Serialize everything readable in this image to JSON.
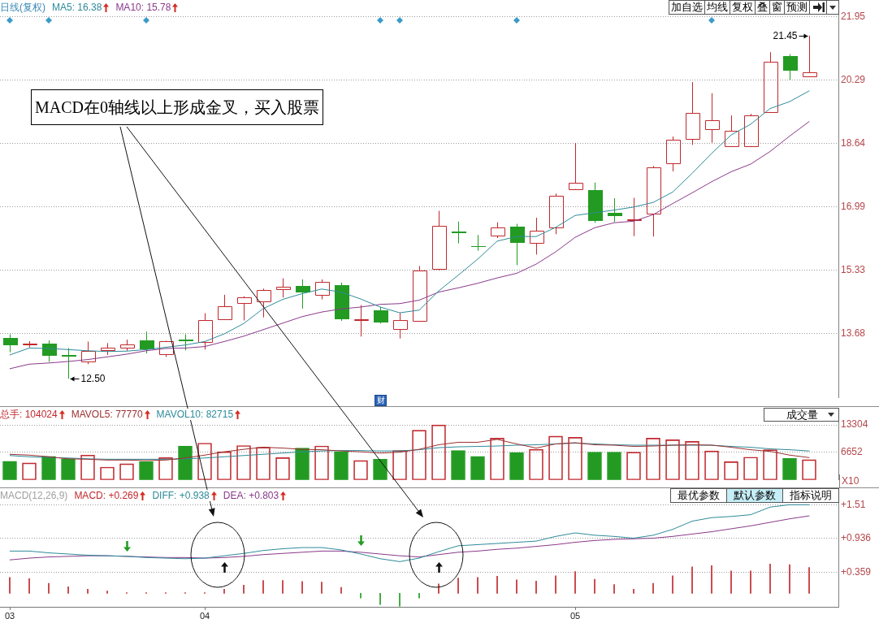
{
  "chart_data": [
    {
      "type": "candlestick",
      "title": "日线(复权)",
      "categories": [
        "03",
        null,
        null,
        null,
        null,
        null,
        null,
        null,
        null,
        null,
        "04",
        null,
        null,
        null,
        null,
        null,
        null,
        null,
        null,
        null,
        null,
        null,
        null,
        null,
        null,
        null,
        null,
        null,
        null,
        "05",
        null,
        null,
        null,
        null,
        null,
        null,
        null,
        null,
        null,
        null,
        null,
        null
      ],
      "ohlc": [
        [
          13.57,
          13.66,
          13.19,
          13.38
        ],
        [
          13.39,
          13.48,
          13.32,
          13.41
        ],
        [
          13.42,
          13.5,
          12.94,
          13.09
        ],
        [
          13.12,
          13.3,
          12.5,
          13.07
        ],
        [
          12.94,
          13.47,
          12.88,
          13.23
        ],
        [
          13.25,
          13.43,
          13.12,
          13.3
        ],
        [
          13.31,
          13.52,
          13.23,
          13.4
        ],
        [
          13.5,
          13.73,
          13.16,
          13.26
        ],
        [
          13.14,
          13.49,
          13.07,
          13.49
        ],
        [
          13.53,
          13.66,
          13.24,
          13.48
        ],
        [
          13.45,
          14.21,
          13.26,
          14.02
        ],
        [
          14.05,
          14.69,
          14.03,
          14.4
        ],
        [
          14.47,
          14.65,
          14.02,
          14.63
        ],
        [
          14.52,
          14.85,
          14.1,
          14.81
        ],
        [
          14.83,
          15.12,
          14.62,
          14.91
        ],
        [
          14.92,
          15.09,
          14.33,
          14.75
        ],
        [
          14.69,
          15.09,
          14.57,
          15.02
        ],
        [
          14.95,
          15.01,
          14.01,
          14.06
        ],
        [
          14.04,
          14.42,
          13.6,
          14.05
        ],
        [
          14.29,
          14.37,
          13.94,
          13.96
        ],
        [
          13.8,
          14.22,
          13.55,
          14.04
        ],
        [
          14.01,
          15.44,
          13.99,
          15.32
        ],
        [
          15.36,
          16.88,
          15.32,
          16.48
        ],
        [
          16.35,
          16.6,
          16.03,
          16.29
        ],
        [
          15.96,
          16.25,
          15.84,
          15.95
        ],
        [
          16.24,
          16.58,
          16.17,
          16.45
        ],
        [
          16.46,
          16.54,
          15.46,
          16.05
        ],
        [
          16.05,
          16.7,
          15.74,
          16.37
        ],
        [
          16.45,
          17.33,
          16.27,
          17.28
        ],
        [
          17.45,
          18.65,
          17.45,
          17.62
        ],
        [
          17.43,
          17.62,
          16.57,
          16.62
        ],
        [
          16.83,
          17.21,
          16.59,
          16.74
        ],
        [
          16.64,
          17.22,
          16.22,
          16.66
        ],
        [
          16.81,
          18.05,
          16.21,
          18.01
        ],
        [
          18.12,
          18.82,
          17.91,
          18.73
        ],
        [
          18.76,
          20.24,
          18.6,
          19.44
        ],
        [
          19.02,
          19.95,
          18.66,
          19.24
        ],
        [
          18.57,
          19.37,
          18.57,
          18.97
        ],
        [
          18.57,
          19.41,
          18.57,
          19.37
        ],
        [
          19.46,
          21.02,
          19.46,
          20.78
        ],
        [
          20.91,
          20.97,
          20.29,
          20.53
        ],
        [
          20.39,
          21.45,
          20.39,
          20.5
        ]
      ],
      "colors": [
        "#239b23",
        "#c0282d",
        "#239b23",
        "#239b23",
        "#c0282d",
        "#c0282d",
        "#c0282d",
        "#239b23",
        "#c0282d",
        "#239b23",
        "#c0282d",
        "#c0282d",
        "#c0282d",
        "#c0282d",
        "#c0282d",
        "#239b23",
        "#c0282d",
        "#239b23",
        "#c0282d",
        "#239b23",
        "#c0282d",
        "#c0282d",
        "#c0282d",
        "#239b23",
        "#239b23",
        "#c0282d",
        "#239b23",
        "#c0282d",
        "#c0282d",
        "#c0282d",
        "#239b23",
        "#239b23",
        "#c0282d",
        "#c0282d",
        "#c0282d",
        "#c0282d",
        "#c0282d",
        "#c0282d",
        "#c0282d",
        "#c0282d",
        "#239b23",
        "#c0282d"
      ],
      "series": [
        {
          "name": "MA5: 16.38",
          "type": "line",
          "color": "#2e8b99",
          "values": [
            13.12,
            13.3,
            13.29,
            13.26,
            13.23,
            13.21,
            13.22,
            13.26,
            13.32,
            13.38,
            13.47,
            13.67,
            13.94,
            14.33,
            14.57,
            14.72,
            14.84,
            14.76,
            14.58,
            14.37,
            14.22,
            14.29,
            14.79,
            15.2,
            15.62,
            16.09,
            16.21,
            16.21,
            16.45,
            16.76,
            16.83,
            16.9,
            16.98,
            17.1,
            17.37,
            17.86,
            18.38,
            18.86,
            19.14,
            19.55,
            19.73,
            20.01
          ]
        },
        {
          "name": "MA10: 15.78",
          "type": "line",
          "color": "#8a3a8a",
          "values": [
            12.76,
            12.88,
            12.91,
            12.95,
            13.0,
            13.07,
            13.14,
            13.23,
            13.29,
            13.3,
            13.34,
            13.47,
            13.61,
            13.78,
            13.95,
            14.12,
            14.24,
            14.32,
            14.37,
            14.44,
            14.46,
            14.55,
            14.76,
            14.87,
            14.99,
            15.13,
            15.25,
            15.49,
            15.81,
            16.19,
            16.44,
            16.57,
            16.61,
            16.78,
            17.07,
            17.35,
            17.64,
            17.9,
            18.1,
            18.43,
            18.83,
            19.21
          ]
        }
      ],
      "ylim": [
        12.0,
        22.0
      ],
      "yticks": [
        13.68,
        15.33,
        16.99,
        18.64,
        20.29,
        21.95
      ],
      "grid": "y",
      "legend": "top left",
      "tick_labels": "y",
      "annotations": [
        "加自选",
        "均线",
        "复权",
        "叠",
        "窗",
        "预测",
        "MACD在0轴线以上形成金叉，买入股票",
        "财",
        "12.50",
        "21.45"
      ]
    },
    {
      "type": "bar",
      "categories": [
        "03",
        null,
        null,
        null,
        null,
        null,
        null,
        null,
        null,
        null,
        "04",
        null,
        null,
        null,
        null,
        null,
        null,
        null,
        null,
        null,
        null,
        null,
        null,
        null,
        null,
        null,
        null,
        null,
        null,
        "05",
        null,
        null,
        null,
        null,
        null,
        null,
        null,
        null,
        null,
        null,
        null,
        null
      ],
      "series": [
        {
          "name": "总手: 104024",
          "color": "#c0282d",
          "colors": [
            "#239b23",
            "#c0282d",
            "#239b23",
            "#239b23",
            "#c0282d",
            "#c0282d",
            "#c0282d",
            "#239b23",
            "#c0282d",
            "#239b23",
            "#c0282d",
            "#c0282d",
            "#c0282d",
            "#c0282d",
            "#c0282d",
            "#239b23",
            "#c0282d",
            "#239b23",
            "#c0282d",
            "#239b23",
            "#c0282d",
            "#c0282d",
            "#c0282d",
            "#239b23",
            "#239b23",
            "#c0282d",
            "#239b23",
            "#c0282d",
            "#c0282d",
            "#c0282d",
            "#239b23",
            "#239b23",
            "#c0282d",
            "#c0282d",
            "#c0282d",
            "#c0282d",
            "#c0282d",
            "#c0282d",
            "#c0282d",
            "#c0282d",
            "#239b23",
            "#c0282d"
          ],
          "values": [
            4500,
            4100,
            5700,
            5100,
            6000,
            3100,
            3900,
            4400,
            5400,
            8200,
            8900,
            6800,
            8300,
            7900,
            5400,
            7700,
            8200,
            6800,
            4700,
            5000,
            7100,
            12000,
            13300,
            7100,
            5700,
            10100,
            6600,
            7400,
            10600,
            10300,
            6700,
            6700,
            6700,
            10100,
            9700,
            9300,
            7000,
            4400,
            5500,
            7300,
            5200,
            4900
          ]
        },
        {
          "name": "MAVOL5: 77770",
          "type": "line",
          "color": "#9b3030",
          "values": [
            6200,
            6000,
            5600,
            5100,
            5000,
            4800,
            4800,
            4700,
            4800,
            5300,
            6000,
            6800,
            7400,
            7900,
            7700,
            7400,
            7300,
            7000,
            6800,
            6500,
            6700,
            7400,
            8500,
            9100,
            9100,
            9800,
            8700,
            7700,
            8700,
            9000,
            8500,
            8400,
            8100,
            8200,
            8400,
            8500,
            8400,
            7900,
            7300,
            6900,
            6000,
            5400
          ]
        },
        {
          "name": "MAVOL10: 82715",
          "type": "line",
          "color": "#2e8b99",
          "values": [
            5900,
            5600,
            5400,
            5300,
            5100,
            5000,
            5000,
            5000,
            5000,
            5100,
            5300,
            5600,
            5900,
            6200,
            6500,
            6800,
            7000,
            7100,
            7100,
            7000,
            7000,
            7300,
            7800,
            8000,
            8100,
            8200,
            8400,
            8500,
            8700,
            8900,
            8700,
            8500,
            8400,
            8400,
            8400,
            8400,
            8400,
            8100,
            7900,
            7500,
            7300,
            7000
          ]
        }
      ],
      "ylim": [
        0,
        14100
      ],
      "yticks": [
        6652,
        13304
      ],
      "ylabel": "X10",
      "grid": "y",
      "legend": "top left",
      "tick_labels": "y",
      "annotations": [
        "成交量"
      ]
    },
    {
      "type": "line",
      "title": "MACD(12,26,9)",
      "categories": [
        "03",
        null,
        null,
        null,
        null,
        null,
        null,
        null,
        null,
        null,
        "04",
        null,
        null,
        null,
        null,
        null,
        null,
        null,
        null,
        null,
        null,
        null,
        null,
        null,
        null,
        null,
        null,
        null,
        null,
        "05",
        null,
        null,
        null,
        null,
        null,
        null,
        null,
        null,
        null,
        null,
        null,
        null
      ],
      "series": [
        {
          "name": "MACD: +0.269",
          "type": "bar",
          "color": "#c0282d",
          "colors": [
            "#c0282d",
            "#c0282d",
            "#c0282d",
            "#c0282d",
            "#c0282d",
            "#c0282d",
            "#c0282d",
            "#c0282d",
            "#c0282d",
            "#c0282d",
            "#c0282d",
            "#c0282d",
            "#c0282d",
            "#c0282d",
            "#c0282d",
            "#c0282d",
            "#c0282d",
            "#c0282d",
            "#239b23",
            "#239b23",
            "#239b23",
            "#239b23",
            "#c0282d",
            "#c0282d",
            "#c0282d",
            "#c0282d",
            "#c0282d",
            "#c0282d",
            "#c0282d",
            "#c0282d",
            "#c0282d",
            "#c0282d",
            "#c0282d",
            "#c0282d",
            "#c0282d",
            "#c0282d",
            "#c0282d",
            "#c0282d",
            "#c0282d",
            "#c0282d",
            "#c0282d",
            "#c0282d"
          ],
          "values": [
            0.27,
            0.25,
            0.17,
            0.11,
            0.07,
            0.04,
            0.01,
            0.01,
            0.01,
            0.01,
            0.01,
            0.07,
            0.14,
            0.22,
            0.22,
            0.2,
            0.19,
            0.1,
            -0.08,
            -0.19,
            -0.22,
            -0.08,
            0.16,
            0.26,
            0.27,
            0.29,
            0.23,
            0.21,
            0.3,
            0.37,
            0.24,
            0.15,
            0.07,
            0.17,
            0.3,
            0.45,
            0.47,
            0.38,
            0.38,
            0.5,
            0.49,
            0.44
          ]
        },
        {
          "name": "DIFF: +0.938",
          "color": "#2e8b99",
          "values": [
            0.72,
            0.72,
            0.69,
            0.67,
            0.65,
            0.64,
            0.63,
            0.61,
            0.6,
            0.59,
            0.6,
            0.64,
            0.68,
            0.73,
            0.76,
            0.78,
            0.78,
            0.74,
            0.67,
            0.59,
            0.54,
            0.6,
            0.71,
            0.81,
            0.83,
            0.85,
            0.87,
            0.89,
            0.97,
            1.03,
            0.99,
            0.97,
            0.94,
            0.99,
            1.09,
            1.23,
            1.29,
            1.31,
            1.34,
            1.47,
            1.51,
            1.51
          ]
        },
        {
          "name": "DEA: +0.803",
          "color": "#8a3a8a",
          "values": [
            0.57,
            0.6,
            0.62,
            0.63,
            0.64,
            0.64,
            0.63,
            0.62,
            0.61,
            0.61,
            0.6,
            0.61,
            0.63,
            0.66,
            0.68,
            0.7,
            0.72,
            0.72,
            0.7,
            0.67,
            0.64,
            0.62,
            0.66,
            0.7,
            0.72,
            0.75,
            0.77,
            0.8,
            0.83,
            0.87,
            0.9,
            0.92,
            0.93,
            0.94,
            0.97,
            1.01,
            1.05,
            1.1,
            1.15,
            1.21,
            1.27,
            1.32
          ]
        }
      ],
      "ylim": [
        -0.23,
        1.57
      ],
      "yticks": [
        {
          "value": 0.359,
          "label": "+0.359"
        },
        {
          "value": 0.936,
          "label": "+0.936"
        },
        {
          "value": 1.51,
          "label": "+1.51"
        }
      ],
      "grid": "y",
      "legend": "top left",
      "annotations": [
        "最优参数",
        "默认参数",
        "指标说明"
      ]
    }
  ]
}
